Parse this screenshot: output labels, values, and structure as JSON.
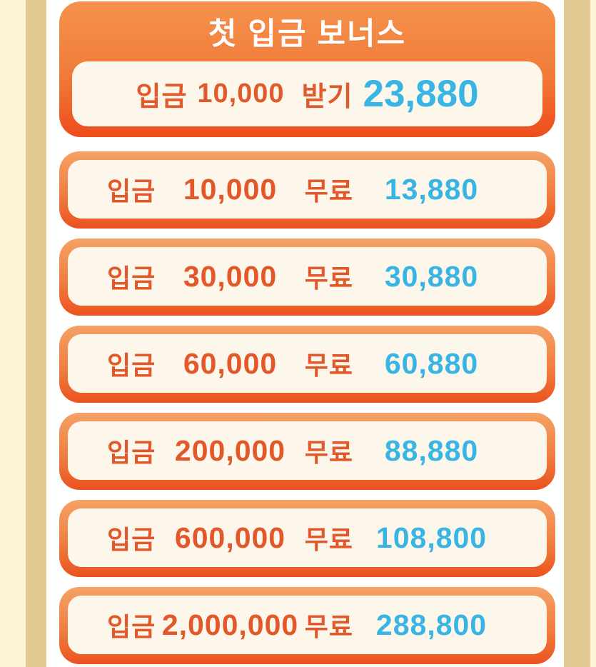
{
  "header": {
    "title": "첫 입금 보너스",
    "claim": {
      "deposit_label": "입금",
      "deposit_amount": "10,000",
      "action_label": "받기",
      "bonus_amount": "23,880"
    }
  },
  "rows": [
    {
      "deposit_label": "입금",
      "deposit_amount": "10,000",
      "free_label": "무료",
      "bonus_amount": "13,880"
    },
    {
      "deposit_label": "입금",
      "deposit_amount": "30,000",
      "free_label": "무료",
      "bonus_amount": "30,880"
    },
    {
      "deposit_label": "입금",
      "deposit_amount": "60,000",
      "free_label": "무료",
      "bonus_amount": "60,880"
    },
    {
      "deposit_label": "입금",
      "deposit_amount": "200,000",
      "free_label": "무료",
      "bonus_amount": "88,880"
    },
    {
      "deposit_label": "입금",
      "deposit_amount": "600,000",
      "free_label": "무료",
      "bonus_amount": "108,800"
    },
    {
      "deposit_label": "입금",
      "deposit_amount": "2,000,000",
      "free_label": "무료",
      "bonus_amount": "288,800"
    }
  ],
  "colors": {
    "card_gradient_top": "#f5a166",
    "card_gradient_bottom": "#eb5220",
    "header_gradient_top": "#f6924e",
    "header_gradient_bottom": "#ee4c1b",
    "panel_cream": "#fcf7ea",
    "text_orange": "#e2582a",
    "text_cyan": "#38b5e4",
    "title_white": "#ffffff",
    "side_cream": "#fdf3d6",
    "side_tan": "#e3ca92"
  }
}
